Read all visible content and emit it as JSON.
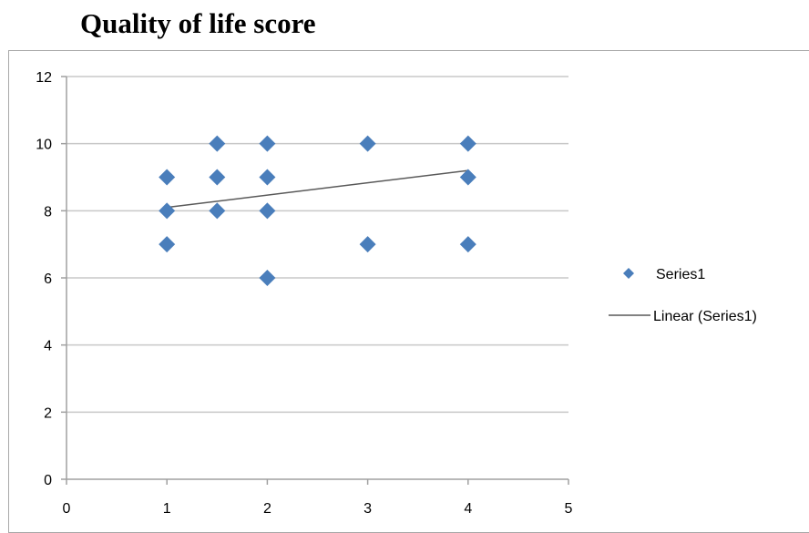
{
  "chart_data": {
    "type": "scatter",
    "title": "Quality of life score",
    "xlabel": "",
    "ylabel": "",
    "xlim": [
      0,
      5
    ],
    "ylim": [
      0,
      12
    ],
    "x_ticks": [
      0,
      1,
      2,
      3,
      4,
      5
    ],
    "y_ticks": [
      0,
      2,
      4,
      6,
      8,
      10,
      12
    ],
    "grid": "horizontal",
    "legend_position": "right",
    "colors": {
      "marker": "#4a7ebb",
      "trendline": "#595959",
      "gridline": "#c8c8c8",
      "axis": "#a0a0a0"
    },
    "series": [
      {
        "name": "Series1",
        "marker": "diamond",
        "points": [
          {
            "x": 1,
            "y": 9
          },
          {
            "x": 1,
            "y": 8
          },
          {
            "x": 1,
            "y": 7
          },
          {
            "x": 1.5,
            "y": 10
          },
          {
            "x": 1.5,
            "y": 9
          },
          {
            "x": 1.5,
            "y": 8
          },
          {
            "x": 2,
            "y": 10
          },
          {
            "x": 2,
            "y": 9
          },
          {
            "x": 2,
            "y": 8
          },
          {
            "x": 2,
            "y": 6
          },
          {
            "x": 3,
            "y": 10
          },
          {
            "x": 3,
            "y": 7
          },
          {
            "x": 4,
            "y": 10
          },
          {
            "x": 4,
            "y": 9
          },
          {
            "x": 4,
            "y": 7
          }
        ]
      }
    ],
    "trendline": {
      "name": "Linear (Series1)",
      "type": "linear",
      "from": {
        "x": 1,
        "y": 8.1
      },
      "to": {
        "x": 4,
        "y": 9.2
      }
    },
    "legend": [
      {
        "label": "Series1",
        "kind": "marker"
      },
      {
        "label": "Linear (Series1)",
        "kind": "line"
      }
    ]
  }
}
